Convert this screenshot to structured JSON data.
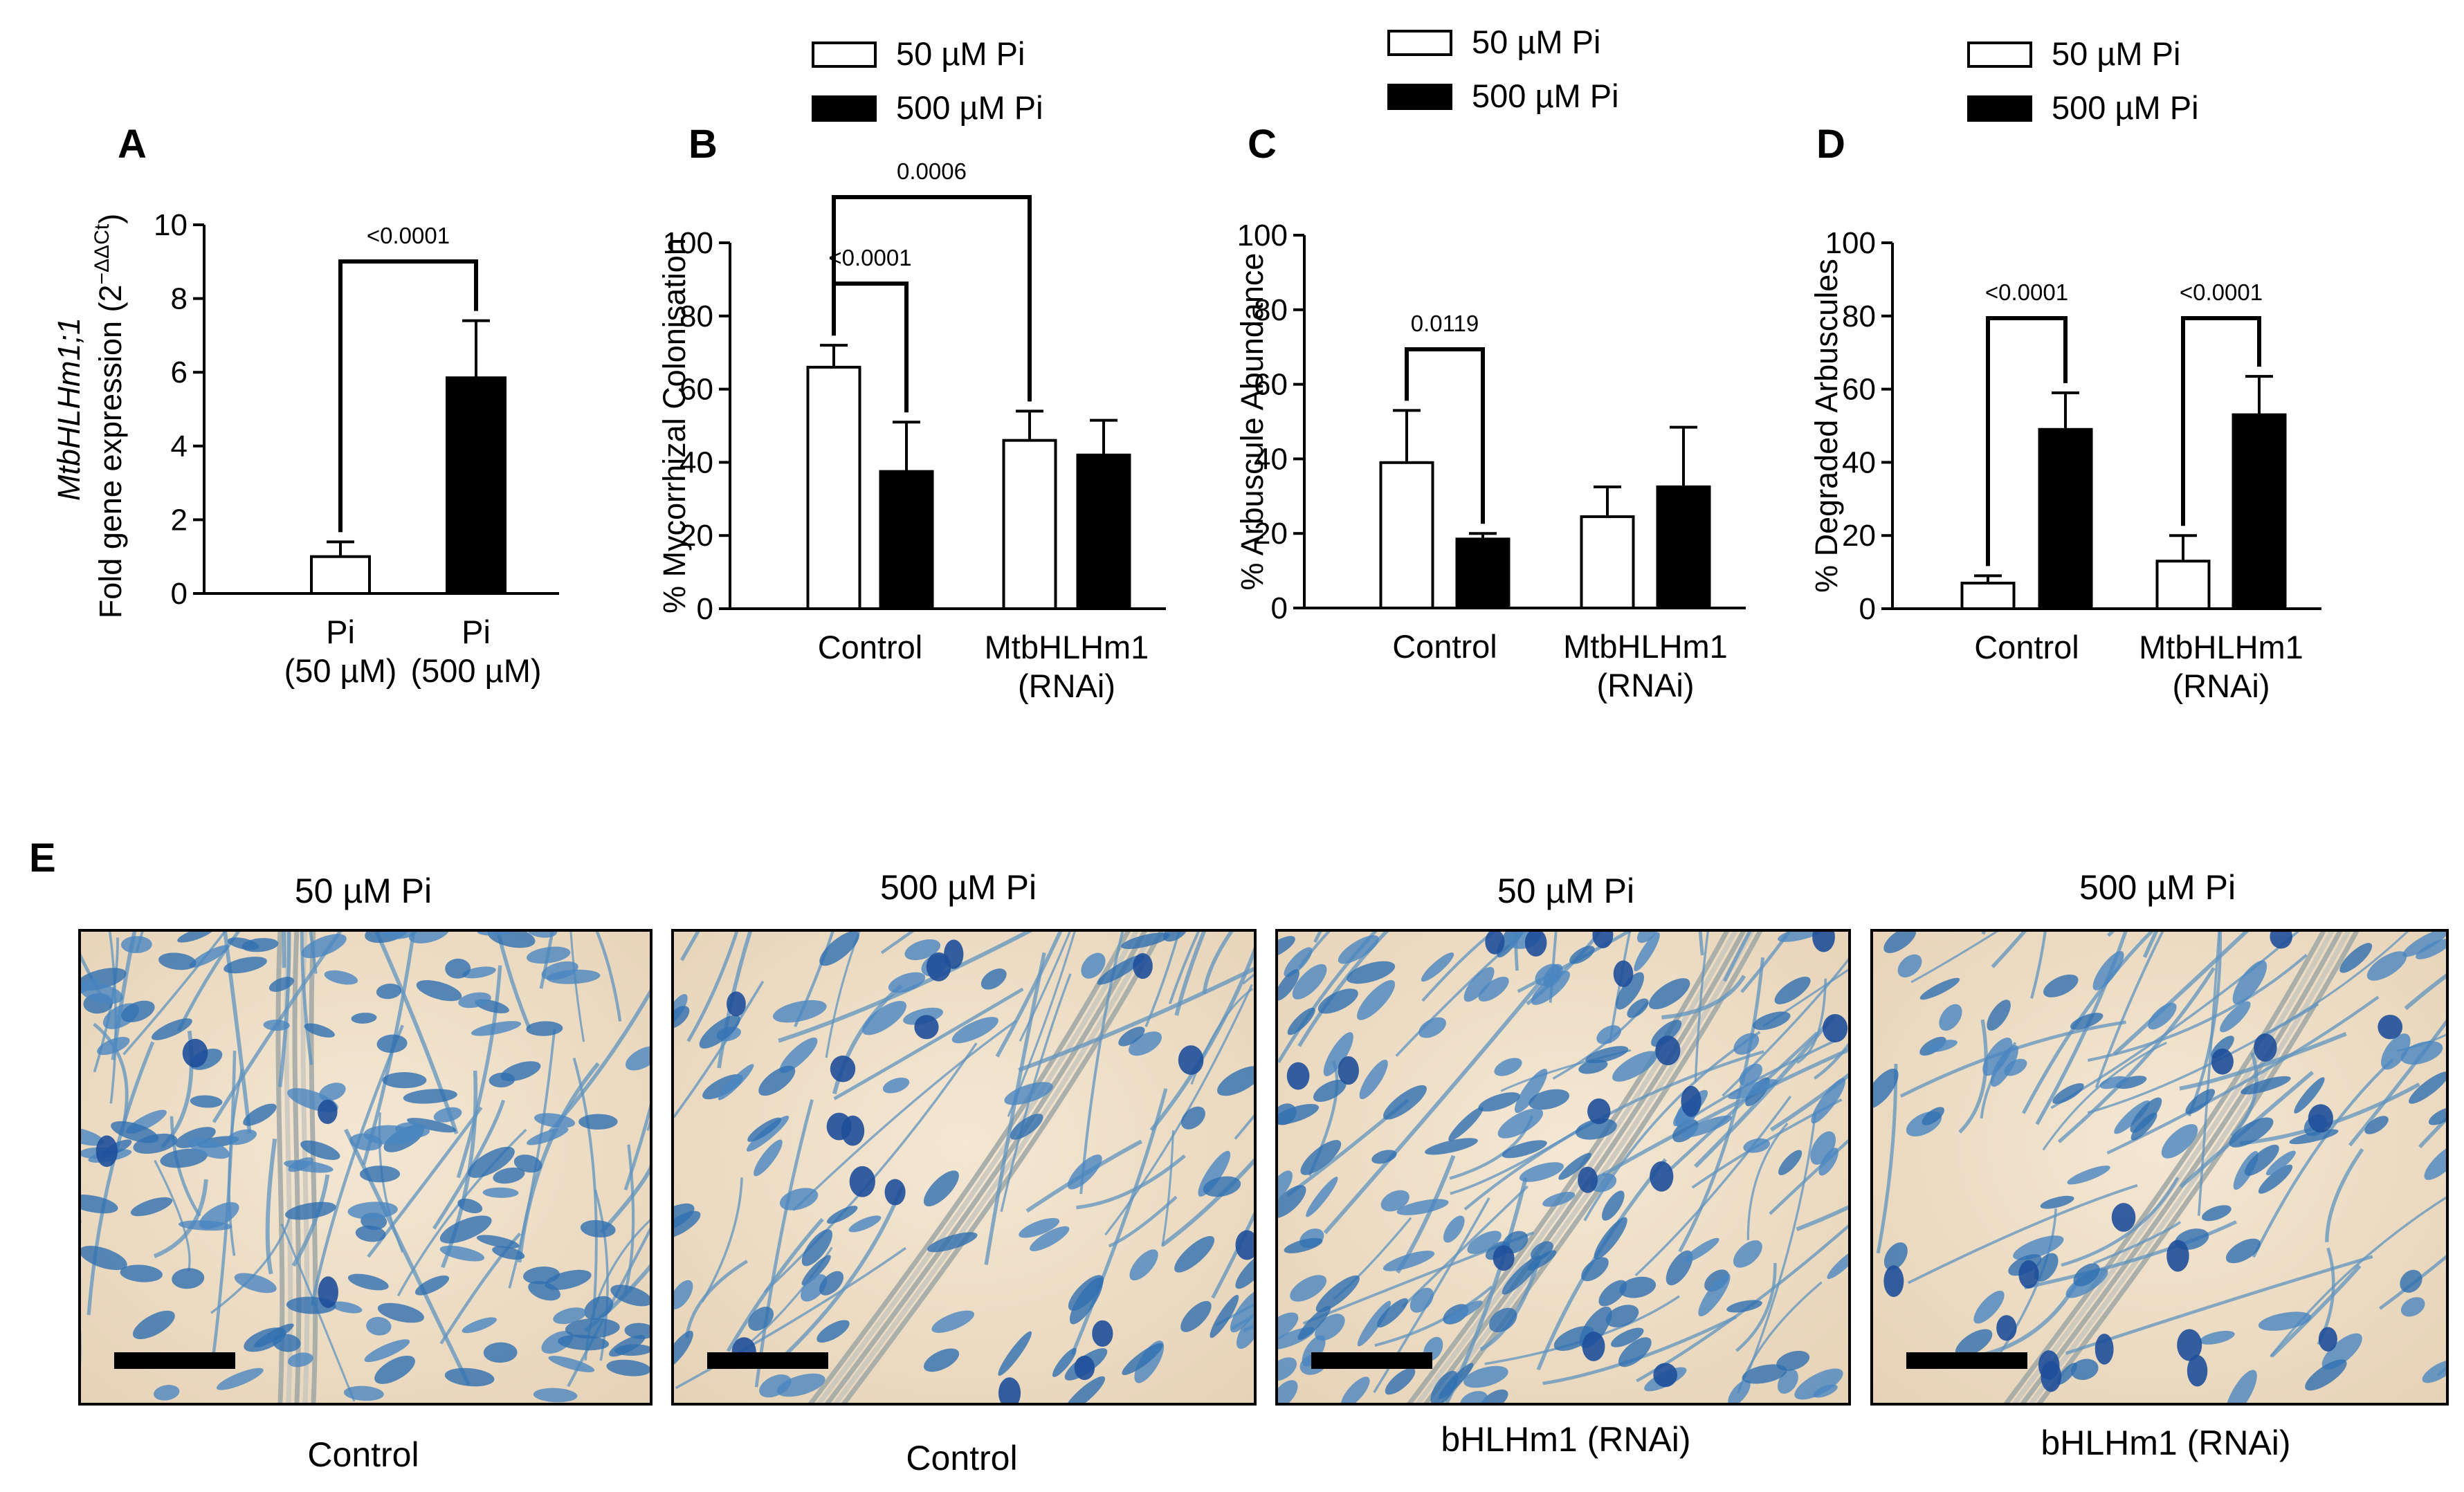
{
  "chart_data": [
    {
      "type": "bar",
      "panel": "A",
      "ylabel_gene": "MtbHLHm1;1",
      "ylabel": "Fold gene expression (2",
      "ylabel_sup": "−ΔΔCt",
      "ylabel_close": ")",
      "ylim": [
        0,
        10
      ],
      "yticks": [
        "0",
        "2",
        "4",
        "6",
        "8",
        "10"
      ],
      "categories": [
        {
          "line1": "Pi",
          "line2": "(50 µM)"
        },
        {
          "line1": "Pi",
          "line2": "(500 µM)"
        }
      ],
      "values": [
        1.0,
        5.85
      ],
      "errors": [
        0.4,
        1.55
      ],
      "colors": [
        "#ffffff",
        "#000000"
      ],
      "comparisons": [
        {
          "from": 0,
          "to": 1,
          "label": "<0.0001"
        }
      ]
    },
    {
      "type": "bar",
      "panel": "B",
      "ylabel": "% Mycorrhizal Colonisation",
      "ylim": [
        0,
        100
      ],
      "yticks": [
        "0",
        "20",
        "40",
        "60",
        "80",
        "100"
      ],
      "groups": [
        {
          "line1": "Control",
          "line2": ""
        },
        {
          "line1": "MtbHLHm1",
          "line2": "(RNAi)"
        }
      ],
      "series": [
        {
          "name": "50 µM Pi",
          "color": "#ffffff",
          "values": [
            66,
            46
          ],
          "errors": [
            6,
            8
          ]
        },
        {
          "name": "500 µM Pi",
          "color": "#000000",
          "values": [
            37.5,
            42
          ],
          "errors": [
            13.5,
            9.5
          ]
        }
      ],
      "comparisons": [
        {
          "from_group": 0,
          "from_series": 0,
          "to_group": 0,
          "to_series": 1,
          "label": "<0.0001"
        },
        {
          "from_group": 0,
          "from_series": 0,
          "to_group": 1,
          "to_series": 0,
          "label": "0.0006"
        }
      ],
      "legend": [
        "50 µM Pi",
        "500 µM Pi"
      ]
    },
    {
      "type": "bar",
      "panel": "C",
      "ylabel": "% Arbuscule Abundance",
      "ylim": [
        0,
        100
      ],
      "yticks": [
        "0",
        "20",
        "40",
        "60",
        "80",
        "100"
      ],
      "groups": [
        {
          "line1": "Control",
          "line2": ""
        },
        {
          "line1": "MtbHLHm1",
          "line2": "(RNAi)"
        }
      ],
      "series": [
        {
          "name": "50 µM Pi",
          "color": "#ffffff",
          "values": [
            39,
            24.5
          ],
          "errors": [
            14,
            8
          ]
        },
        {
          "name": "500 µM Pi",
          "color": "#000000",
          "values": [
            18.5,
            32.5
          ],
          "errors": [
            1.5,
            16
          ]
        }
      ],
      "comparisons": [
        {
          "from_group": 0,
          "from_series": 0,
          "to_group": 0,
          "to_series": 1,
          "label": "0.0119"
        }
      ],
      "legend": [
        "50 µM Pi",
        "500 µM Pi"
      ]
    },
    {
      "type": "bar",
      "panel": "D",
      "ylabel": "% Degraded Arbuscules",
      "ylim": [
        0,
        100
      ],
      "yticks": [
        "0",
        "20",
        "40",
        "60",
        "80",
        "100"
      ],
      "groups": [
        {
          "line1": "Control",
          "line2": ""
        },
        {
          "line1": "MtbHLHm1",
          "line2": "(RNAi)"
        }
      ],
      "series": [
        {
          "name": "50 µM Pi",
          "color": "#ffffff",
          "values": [
            7,
            13
          ],
          "errors": [
            2,
            7
          ]
        },
        {
          "name": "500 µM Pi",
          "color": "#000000",
          "values": [
            49,
            53
          ],
          "errors": [
            10,
            10.5
          ]
        }
      ],
      "comparisons": [
        {
          "from_group": 0,
          "from_series": 0,
          "to_group": 0,
          "to_series": 1,
          "label": "<0.0001"
        },
        {
          "from_group": 1,
          "from_series": 0,
          "to_group": 1,
          "to_series": 1,
          "label": "<0.0001"
        }
      ],
      "legend": [
        "50 µM Pi",
        "500 µM Pi"
      ]
    }
  ],
  "panel_e": {
    "letter": "E",
    "images": [
      {
        "title": "50 µM Pi",
        "caption": "Control"
      },
      {
        "title": "500 µM Pi",
        "caption": "Control"
      },
      {
        "title": "50 µM Pi",
        "caption": "bHLHm1 (RNAi)"
      },
      {
        "title": "500 µM Pi",
        "caption": "bHLHm1 (RNAi)"
      }
    ]
  }
}
